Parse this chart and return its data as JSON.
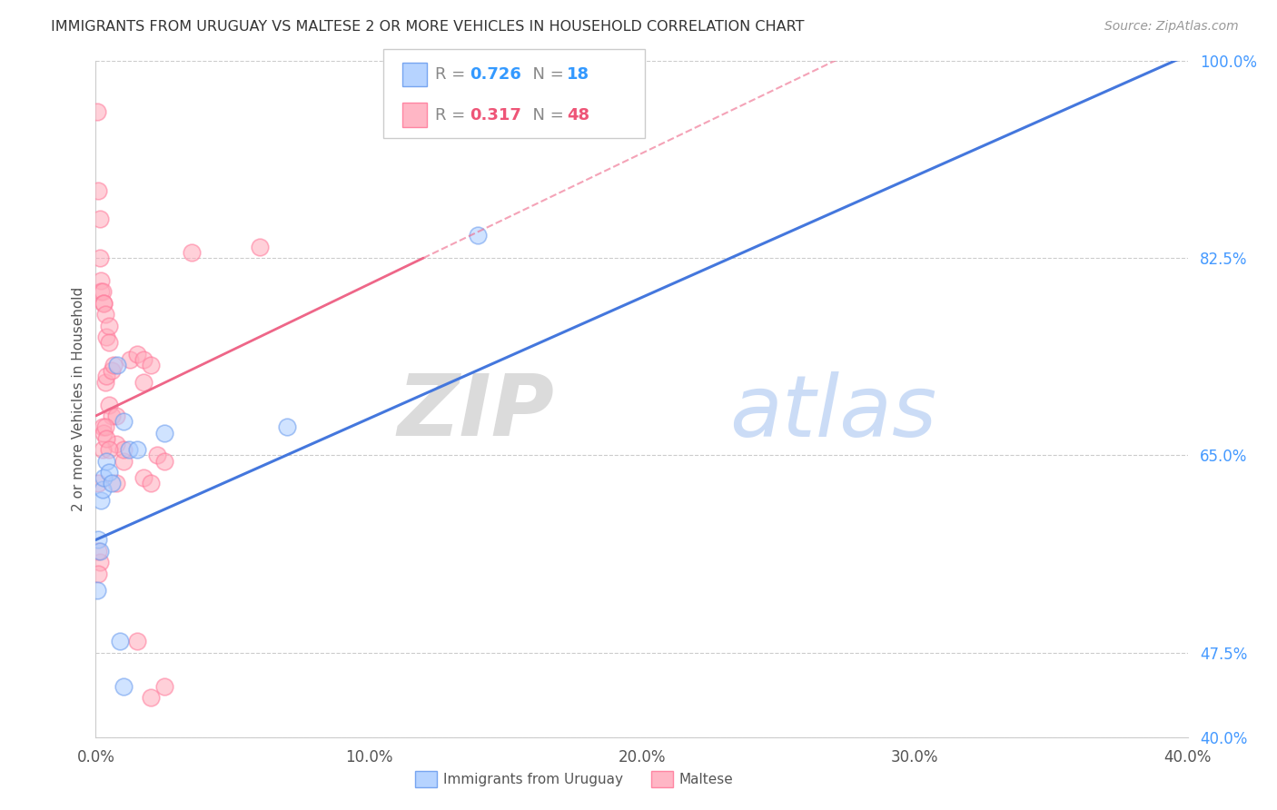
{
  "title": "IMMIGRANTS FROM URUGUAY VS MALTESE 2 OR MORE VEHICLES IN HOUSEHOLD CORRELATION CHART",
  "source": "Source: ZipAtlas.com",
  "ylabel_label": "2 or more Vehicles in Household",
  "legend_blue_label": "Immigrants from Uruguay",
  "legend_pink_label": "Maltese",
  "R_blue": 0.726,
  "N_blue": 18,
  "R_pink": 0.317,
  "N_pink": 48,
  "x_min": 0.0,
  "x_max": 40.0,
  "y_min": 40.0,
  "y_max": 100.0,
  "blue_color": "#6699EE",
  "blue_fill": "#AACCFF",
  "pink_color": "#FF7799",
  "pink_fill": "#FFAABB",
  "line_blue_color": "#4477DD",
  "line_pink_color": "#EE6688",
  "blue_scatter": [
    [
      0.1,
      57.5
    ],
    [
      0.15,
      56.5
    ],
    [
      0.2,
      61.0
    ],
    [
      0.25,
      62.0
    ],
    [
      0.3,
      63.0
    ],
    [
      0.4,
      64.5
    ],
    [
      0.5,
      63.5
    ],
    [
      0.6,
      62.5
    ],
    [
      0.8,
      73.0
    ],
    [
      1.0,
      68.0
    ],
    [
      1.2,
      65.5
    ],
    [
      1.5,
      65.5
    ],
    [
      2.5,
      67.0
    ],
    [
      7.0,
      67.5
    ],
    [
      14.0,
      84.5
    ],
    [
      0.05,
      53.0
    ],
    [
      0.9,
      48.5
    ],
    [
      1.0,
      44.5
    ]
  ],
  "pink_scatter": [
    [
      0.05,
      95.5
    ],
    [
      0.1,
      88.5
    ],
    [
      0.15,
      86.0
    ],
    [
      0.15,
      82.5
    ],
    [
      0.2,
      80.5
    ],
    [
      0.2,
      79.5
    ],
    [
      0.25,
      79.5
    ],
    [
      0.3,
      78.5
    ],
    [
      0.3,
      78.5
    ],
    [
      0.35,
      77.5
    ],
    [
      0.35,
      71.5
    ],
    [
      0.4,
      72.0
    ],
    [
      0.4,
      75.5
    ],
    [
      0.5,
      76.5
    ],
    [
      0.5,
      75.0
    ],
    [
      0.5,
      69.5
    ],
    [
      0.6,
      72.5
    ],
    [
      0.6,
      68.5
    ],
    [
      0.65,
      73.0
    ],
    [
      0.75,
      68.5
    ],
    [
      0.75,
      66.0
    ],
    [
      1.0,
      64.5
    ],
    [
      1.0,
      65.5
    ],
    [
      1.25,
      73.5
    ],
    [
      1.5,
      74.0
    ],
    [
      1.75,
      73.5
    ],
    [
      1.75,
      71.5
    ],
    [
      2.0,
      73.0
    ],
    [
      2.25,
      65.0
    ],
    [
      2.5,
      64.5
    ],
    [
      0.25,
      65.5
    ],
    [
      0.25,
      67.5
    ],
    [
      0.3,
      67.0
    ],
    [
      0.35,
      67.5
    ],
    [
      0.4,
      66.5
    ],
    [
      0.5,
      65.5
    ],
    [
      0.75,
      62.5
    ],
    [
      1.75,
      63.0
    ],
    [
      2.0,
      62.5
    ],
    [
      6.0,
      83.5
    ],
    [
      1.5,
      48.5
    ],
    [
      2.5,
      44.5
    ],
    [
      2.0,
      43.5
    ],
    [
      0.15,
      55.5
    ],
    [
      0.1,
      56.5
    ],
    [
      0.1,
      54.5
    ],
    [
      0.08,
      62.5
    ],
    [
      3.5,
      83.0
    ]
  ],
  "blue_line": [
    [
      0.0,
      57.5
    ],
    [
      40.0,
      100.5
    ]
  ],
  "pink_line_solid": [
    [
      0.0,
      68.5
    ],
    [
      12.0,
      82.5
    ]
  ],
  "pink_line_dashed": [
    [
      12.0,
      82.5
    ],
    [
      40.0,
      115.0
    ]
  ],
  "yticks": [
    40.0,
    47.5,
    65.0,
    82.5,
    100.0
  ],
  "xticks": [
    0.0,
    10.0,
    20.0,
    30.0,
    40.0
  ],
  "watermark_zip": "ZIP",
  "watermark_atlas": "atlas"
}
